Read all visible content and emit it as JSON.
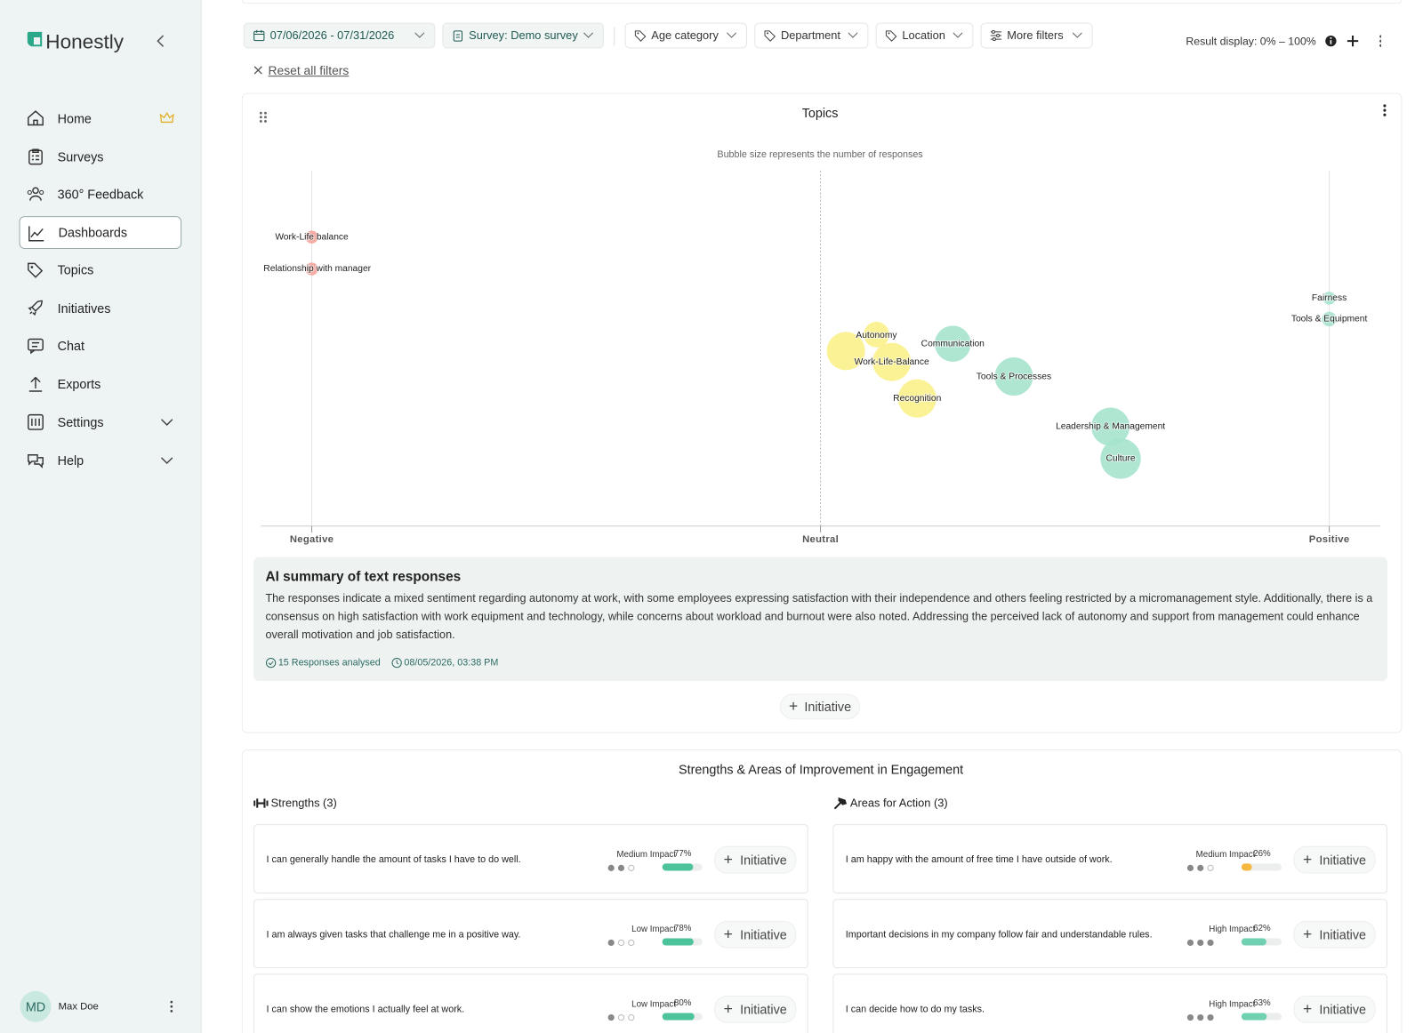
{
  "sidebar": {
    "brand": "Honestly",
    "nav": [
      "Home",
      "Surveys",
      "360° Feedback",
      "Dashboards",
      "Topics",
      "Initiatives",
      "Chat",
      "Exports",
      "Settings",
      "Help"
    ],
    "user": {
      "initials": "MD",
      "name": "Max Doe"
    }
  },
  "filters": {
    "date": "07/06/2026 - 07/31/2026",
    "survey": "Survey: Demo survey",
    "tags": [
      "Age category",
      "Department",
      "Location",
      "More filters"
    ],
    "result_display": "Result display: 0% – 100%",
    "reset": "Reset all filters"
  },
  "chart_data": {
    "type": "bubble",
    "title": "Topics",
    "subtitle": "Bubble size represents the number of responses",
    "categories": [
      "Work-Life balance",
      "Relationship with manager",
      "Fairness",
      "Tools & Equipment",
      "Autonomy",
      null,
      "Work-Life-Balance",
      "Communication",
      "Tools & Processes",
      "Recognition",
      "Leadership & Management",
      "Culture"
    ],
    "x": [
      -1.0,
      -1.0,
      1.0,
      1.0,
      0.11,
      0.05,
      0.14,
      0.26,
      0.38,
      0.19,
      0.57,
      0.59
    ],
    "sizes": [
      1,
      1,
      1,
      1.3,
      4,
      9,
      9,
      8,
      9,
      9,
      9,
      10
    ],
    "colors": [
      "#f4a39b",
      "#f4a39b",
      "#a6e3cd",
      "#a6e3cd",
      "#fbf08a",
      "#fbf08a",
      "#fbf08a",
      "#a6e3cd",
      "#a6e3cd",
      "#fbf08a",
      "#a6e3cd",
      "#a6e3cd"
    ],
    "xlim": [
      -1.1,
      1.1
    ],
    "xticks": [
      {
        "value": -1,
        "label": "Negative"
      },
      {
        "value": 0,
        "label": "Neutral"
      },
      {
        "value": 1,
        "label": "Positive"
      }
    ]
  },
  "summary": {
    "title": "AI summary of text responses",
    "text": "The responses indicate a mixed sentiment regarding autonomy at work, with some employees expressing satisfaction with their independence and others feeling restricted by a micromanagement style. Additionally, there is a consensus on high satisfaction with work equipment and technology, while concerns about workload and burnout were also noted. Addressing the perceived lack of autonomy and support from management could enhance overall motivation and job satisfaction.",
    "responses": "15 Responses analysed",
    "timestamp": "08/05/2026, 03:38 PM"
  },
  "initiative_label": "Initiative",
  "engagement": {
    "title": "Strengths & Areas of Improvement in Engagement",
    "groups": [
      {
        "heading": "Strengths (3)",
        "items": [
          {
            "text": "I can generally handle the amount of tasks I have to do well.",
            "impact": "Medium Impact",
            "impact_level": 2,
            "score": 77,
            "score_label": "77%",
            "color": "#4cc39b"
          },
          {
            "text": "I am always given tasks that challenge me in a positive way.",
            "impact": "Low Impact",
            "impact_level": 1,
            "score": 78,
            "score_label": "78%",
            "color": "#4cc39b"
          },
          {
            "text": "I can show the emotions I actually feel at work.",
            "impact": "Low Impact",
            "impact_level": 1,
            "score": 80,
            "score_label": "80%",
            "color": "#4cc39b"
          }
        ]
      },
      {
        "heading": "Areas for Action (3)",
        "items": [
          {
            "text": "I am happy with the amount of free time I have outside of work.",
            "impact": "Medium Impact",
            "impact_level": 2,
            "score": 26,
            "score_label": "26%",
            "color": "#f5b93f"
          },
          {
            "text": "Important decisions in my company follow fair and understandable rules.",
            "impact": "High Impact",
            "impact_level": 3,
            "score": 62,
            "score_label": "62%",
            "color": "#6fd0b2"
          },
          {
            "text": "I can decide how to do my tasks.",
            "impact": "High Impact",
            "impact_level": 3,
            "score": 63,
            "score_label": "63%",
            "color": "#6fd0b2"
          }
        ]
      }
    ]
  }
}
